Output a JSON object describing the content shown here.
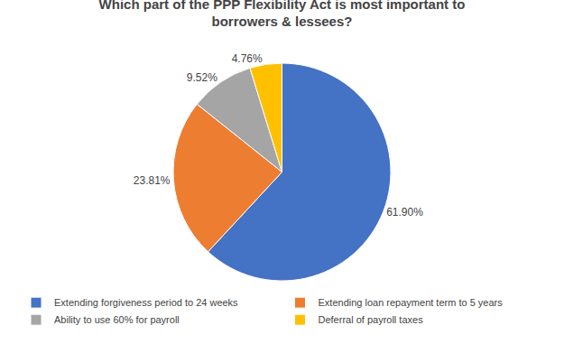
{
  "chart_data": {
    "type": "pie",
    "title": "Which part of the PPP Flexibility Act is most important to\nborrowers & lessees?",
    "categories": [
      "Extending forgiveness period to 24 weeks",
      "Extending loan repayment term to 5 years",
      "Ability to use 60% for payroll",
      "Deferral of payroll taxes"
    ],
    "values": [
      61.9,
      23.81,
      9.52,
      4.76
    ],
    "value_labels": [
      "61.90%",
      "23.81%",
      "9.52%",
      "4.76%"
    ],
    "colors": [
      "#4472C4",
      "#ED7D31",
      "#A5A5A5",
      "#FFC000"
    ],
    "data_labels": true,
    "legend": "bottom"
  }
}
